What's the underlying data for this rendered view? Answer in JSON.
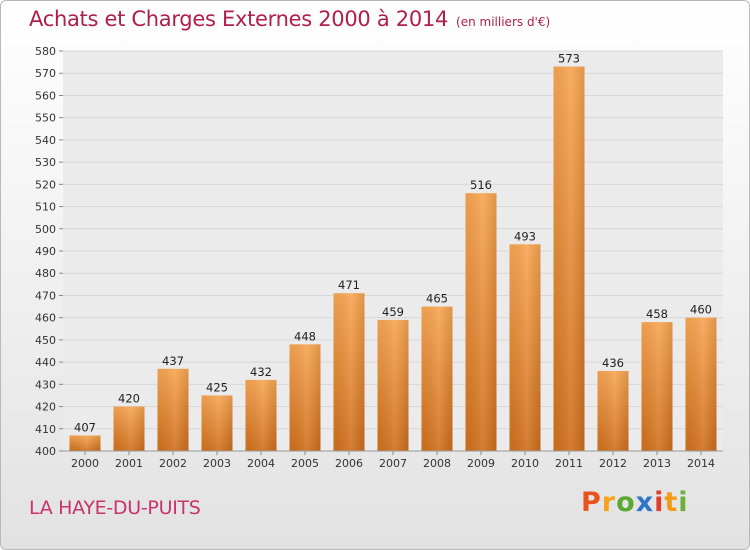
{
  "header": {
    "title": "Achats et Charges Externes 2000 à 2014",
    "subtitle": "(en milliers d'€)"
  },
  "footer": {
    "commune": "LA HAYE-DU-PUITS",
    "logo": [
      "P",
      "r",
      "o",
      "x",
      "i",
      "t",
      "i"
    ],
    "logo_colors": [
      "#e8531d",
      "#f7a21b",
      "#5aa832",
      "#2e74c9",
      "#e23c2c",
      "#f39a17",
      "#6bb13a"
    ]
  },
  "chart_data": {
    "type": "bar",
    "title": "Achats et Charges Externes 2000 à 2014",
    "subtitle": "(en milliers d'€)",
    "categories": [
      "2000",
      "2001",
      "2002",
      "2003",
      "2004",
      "2005",
      "2006",
      "2007",
      "2008",
      "2009",
      "2010",
      "2011",
      "2012",
      "2013",
      "2014"
    ],
    "values": [
      407,
      420,
      437,
      425,
      432,
      448,
      471,
      459,
      465,
      516,
      493,
      573,
      436,
      458,
      460
    ],
    "data_labels": [
      "407",
      "420",
      "437",
      "425",
      "432",
      "448",
      "471",
      "459",
      "465",
      "516",
      "493",
      "573",
      "436",
      "458",
      "460"
    ],
    "ylim": [
      400,
      580
    ],
    "yticks": [
      "400",
      "410",
      "420",
      "430",
      "440",
      "450",
      "460",
      "470",
      "480",
      "490",
      "500",
      "510",
      "520",
      "530",
      "540",
      "550",
      "560",
      "570",
      "580"
    ],
    "xlabel": "",
    "ylabel": "",
    "grid": true,
    "bar_color_top": "#f7a552",
    "bar_color_bottom": "#cf6f1d",
    "grid_color": "#d8d8d8"
  }
}
